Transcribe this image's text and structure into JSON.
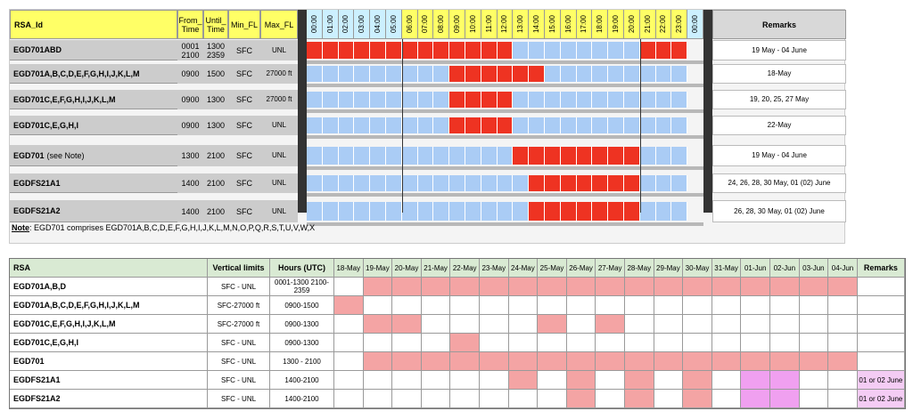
{
  "table1": {
    "headers": {
      "rsa_id": "RSA_Id",
      "from_time": "From_ Time",
      "until_time": "Until_ Time",
      "min_fl": "Min_FL",
      "max_fl": "Max_FL",
      "remarks": "Remarks"
    },
    "hours": [
      "00:00",
      "01:00",
      "02:00",
      "03:00",
      "04:00",
      "05:00",
      "06:00",
      "07:00",
      "08:00",
      "09:00",
      "10:00",
      "11:00",
      "12:00",
      "13:00",
      "14:00",
      "15:00",
      "16:00",
      "17:00",
      "18:00",
      "19:00",
      "20:00",
      "21:00",
      "22:00",
      "23:00",
      "00:00"
    ],
    "rows": [
      {
        "id": "EGD701ABD",
        "id_note": "",
        "from": "0001 2100",
        "until": "1300 2359",
        "min_fl": "SFC",
        "max_fl": "UNL",
        "remarks": "19 May - 04 June",
        "active": [
          [
            0,
            13
          ],
          [
            21,
            24
          ]
        ]
      },
      {
        "id": "EGD701A,B,C,D,E,F,G,H,I,J,K,L,M",
        "id_note": "",
        "from": "0900",
        "until": "1500",
        "min_fl": "SFC",
        "max_fl": "27000 ft",
        "remarks": "18-May",
        "active": [
          [
            9,
            15
          ]
        ]
      },
      {
        "id": "EGD701C,E,F,G,H,I,J,K,L,M",
        "id_note": "",
        "from": "0900",
        "until": "1300",
        "min_fl": "SFC",
        "max_fl": "27000 ft",
        "remarks": "19, 20, 25, 27 May",
        "active": [
          [
            9,
            13
          ]
        ]
      },
      {
        "id": "EGD701C,E,G,H,I",
        "id_note": "",
        "from": "0900",
        "until": "1300",
        "min_fl": "SFC",
        "max_fl": "UNL",
        "remarks": "22-May",
        "active": [
          [
            9,
            13
          ]
        ]
      },
      {
        "id": "EGD701",
        "id_note": "(see Note)",
        "from": "1300",
        "until": "2100",
        "min_fl": "SFC",
        "max_fl": "UNL",
        "remarks": "19 May - 04 June",
        "active": [
          [
            13,
            21
          ]
        ]
      },
      {
        "id": "EGDFS21A1",
        "id_note": "",
        "from": "1400",
        "until": "2100",
        "min_fl": "SFC",
        "max_fl": "UNL",
        "remarks": "24, 26, 28, 30 May, 01 (02) June",
        "active": [
          [
            14,
            21
          ]
        ]
      },
      {
        "id": "EGDFS21A2",
        "id_note": "",
        "from": "1400",
        "until": "2100",
        "min_fl": "SFC",
        "max_fl": "UNL",
        "remarks": "26, 28, 30 May, 01 (02) June",
        "active": [
          [
            14,
            21
          ]
        ]
      }
    ],
    "note_label": "Note",
    "note_text": ": EGD701 comprises EGD701A,B,C,D,E,F,G,H,I,J,K,L,M,N,O,P,Q,R,S,T,U,V,W,X",
    "colors": {
      "active": "#ee3322",
      "inactive": "#aaccf5",
      "hour_header": "#ccf0ff",
      "header": "#ffff66",
      "id_cell": "#cccccc",
      "dark_bar": "#333333"
    }
  },
  "table2": {
    "headers": {
      "rsa": "RSA",
      "vertical": "Vertical limits",
      "hours": "Hours (UTC)",
      "remarks": "Remarks"
    },
    "dates": [
      "18-May",
      "19-May",
      "20-May",
      "21-May",
      "22-May",
      "23-May",
      "24-May",
      "25-May",
      "26-May",
      "27-May",
      "28-May",
      "29-May",
      "30-May",
      "31-May",
      "01-Jun",
      "02-Jun",
      "03-Jun",
      "04-Jun"
    ],
    "rows": [
      {
        "rsa": "EGD701A,B,D",
        "vertical": "SFC - UNL",
        "hours": "0001-1300 2100-2359",
        "marks": [
          0,
          1,
          1,
          1,
          1,
          1,
          1,
          1,
          1,
          1,
          1,
          1,
          1,
          1,
          1,
          1,
          1,
          1
        ],
        "remarks": ""
      },
      {
        "rsa": "EGD701A,B,C,D,E,F,G,H,I,J,K,L,M",
        "vertical": "SFC-27000 ft",
        "hours": "0900-1500",
        "marks": [
          1,
          0,
          0,
          0,
          0,
          0,
          0,
          0,
          0,
          0,
          0,
          0,
          0,
          0,
          0,
          0,
          0,
          0
        ],
        "remarks": ""
      },
      {
        "rsa": "EGD701C,E,F,G,H,I,J,K,L,M",
        "vertical": "SFC-27000 ft",
        "hours": "0900-1300",
        "marks": [
          0,
          1,
          1,
          0,
          0,
          0,
          0,
          1,
          0,
          1,
          0,
          0,
          0,
          0,
          0,
          0,
          0,
          0
        ],
        "remarks": ""
      },
      {
        "rsa": "EGD701C,E,G,H,I",
        "vertical": "SFC - UNL",
        "hours": "0900-1300",
        "marks": [
          0,
          0,
          0,
          0,
          1,
          0,
          0,
          0,
          0,
          0,
          0,
          0,
          0,
          0,
          0,
          0,
          0,
          0
        ],
        "remarks": ""
      },
      {
        "rsa": "EGD701",
        "vertical": "SFC - UNL",
        "hours": "1300 - 2100",
        "marks": [
          0,
          1,
          1,
          1,
          1,
          1,
          1,
          1,
          1,
          1,
          1,
          1,
          1,
          1,
          1,
          1,
          1,
          1
        ],
        "remarks": ""
      },
      {
        "rsa": "EGDFS21A1",
        "vertical": "SFC - UNL",
        "hours": "1400-2100",
        "marks": [
          0,
          0,
          0,
          0,
          0,
          0,
          1,
          0,
          1,
          0,
          1,
          0,
          1,
          0,
          2,
          2,
          0,
          0
        ],
        "remarks": "01 or 02 June"
      },
      {
        "rsa": "EGDFS21A2",
        "vertical": "SFC - UNL",
        "hours": "1400-2100",
        "marks": [
          0,
          0,
          0,
          0,
          0,
          0,
          0,
          0,
          1,
          0,
          1,
          0,
          1,
          0,
          2,
          2,
          0,
          0
        ],
        "remarks": "01 or 02 June"
      }
    ],
    "colors": {
      "mark": "#f4a4a4",
      "optional": "#f0a0f0",
      "header": "#d9ead3",
      "remarks_pink": "#f4ccf4"
    }
  }
}
